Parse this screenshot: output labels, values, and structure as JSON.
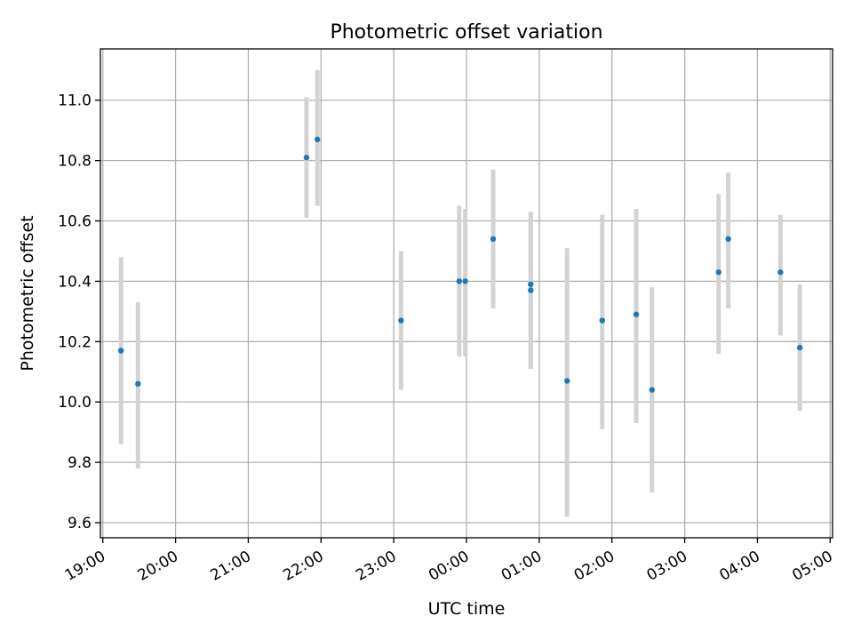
{
  "chart_data": {
    "type": "scatter",
    "title": "Photometric offset variation",
    "xlabel": "UTC time",
    "ylabel": "Photometric offset",
    "grid": true,
    "x_axis_type": "time",
    "xlim": [
      "19:00",
      "05:00"
    ],
    "ylim": [
      9.55,
      11.17
    ],
    "x_ticks": [
      "19:00",
      "20:00",
      "21:00",
      "22:00",
      "23:00",
      "00:00",
      "01:00",
      "02:00",
      "03:00",
      "04:00",
      "05:00"
    ],
    "y_ticks": [
      "9.6",
      "9.8",
      "10.0",
      "10.2",
      "10.4",
      "10.6",
      "10.8",
      "11.0"
    ],
    "point_color": "#1f77b4",
    "errorbar_color": "#d3d3d3",
    "points": [
      {
        "x": "19:15",
        "y": 10.17,
        "ylow": 9.86,
        "yhigh": 10.48
      },
      {
        "x": "19:29",
        "y": 10.06,
        "ylow": 9.78,
        "yhigh": 10.33
      },
      {
        "x": "21:48",
        "y": 10.81,
        "ylow": 10.61,
        "yhigh": 11.01
      },
      {
        "x": "21:57",
        "y": 10.87,
        "ylow": 10.65,
        "yhigh": 11.1
      },
      {
        "x": "23:06",
        "y": 10.27,
        "ylow": 10.04,
        "yhigh": 10.5
      },
      {
        "x": "23:54",
        "y": 10.4,
        "ylow": 10.15,
        "yhigh": 10.65
      },
      {
        "x": "23:59",
        "y": 10.4,
        "ylow": 10.15,
        "yhigh": 10.64
      },
      {
        "x": "00:22",
        "y": 10.54,
        "ylow": 10.31,
        "yhigh": 10.77
      },
      {
        "x": "00:53",
        "y": 10.39,
        "ylow": 10.11,
        "yhigh": 10.63
      },
      {
        "x": "00:53",
        "y": 10.37,
        "ylow": 10.11,
        "yhigh": 10.63
      },
      {
        "x": "01:23",
        "y": 10.07,
        "ylow": 9.62,
        "yhigh": 10.51
      },
      {
        "x": "01:52",
        "y": 10.27,
        "ylow": 9.91,
        "yhigh": 10.62
      },
      {
        "x": "02:20",
        "y": 10.29,
        "ylow": 9.93,
        "yhigh": 10.64
      },
      {
        "x": "02:33",
        "y": 10.04,
        "ylow": 9.7,
        "yhigh": 10.38
      },
      {
        "x": "03:28",
        "y": 10.43,
        "ylow": 10.16,
        "yhigh": 10.69
      },
      {
        "x": "03:36",
        "y": 10.54,
        "ylow": 10.31,
        "yhigh": 10.76
      },
      {
        "x": "04:19",
        "y": 10.43,
        "ylow": 10.22,
        "yhigh": 10.62
      },
      {
        "x": "04:35",
        "y": 10.18,
        "ylow": 9.97,
        "yhigh": 10.39
      }
    ]
  }
}
